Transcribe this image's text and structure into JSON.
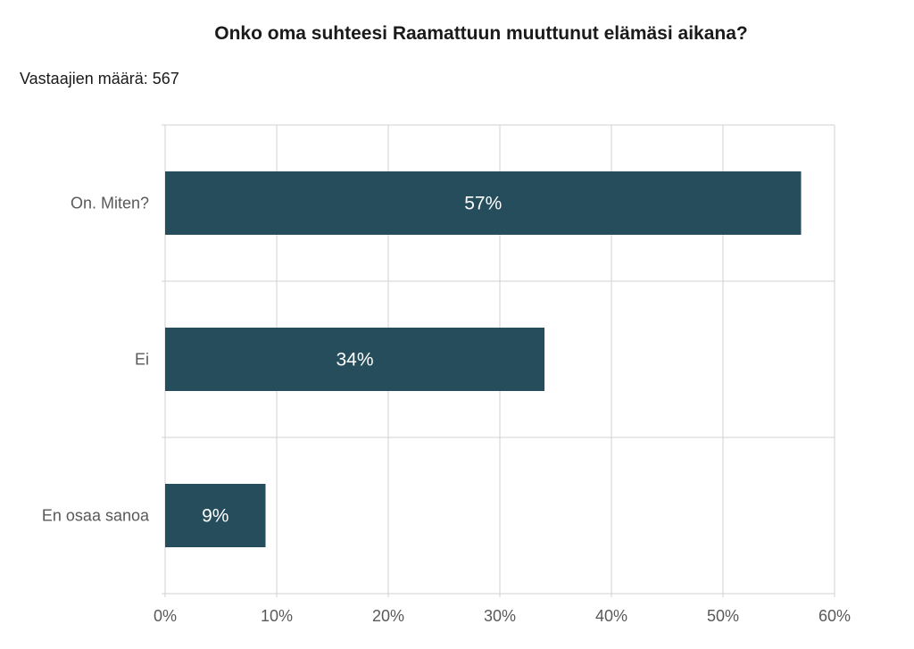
{
  "chart_data": {
    "type": "bar",
    "orientation": "horizontal",
    "title": "Onko oma suhteesi Raamattuun muuttunut elämäsi aikana?",
    "subtitle": "Vastaajien määrä: 567",
    "categories": [
      "On. Miten?",
      "Ei",
      "En osaa sanoa"
    ],
    "values": [
      57,
      34,
      9
    ],
    "value_labels": [
      "57%",
      "34%",
      "9%"
    ],
    "xlim": [
      0,
      60
    ],
    "x_ticks": [
      0,
      10,
      20,
      30,
      40,
      50,
      60
    ],
    "x_tick_labels": [
      "0%",
      "10%",
      "20%",
      "30%",
      "40%",
      "50%",
      "60%"
    ],
    "grid": true,
    "bar_color": "#264d5c",
    "grid_color": "#d0d0d0"
  }
}
